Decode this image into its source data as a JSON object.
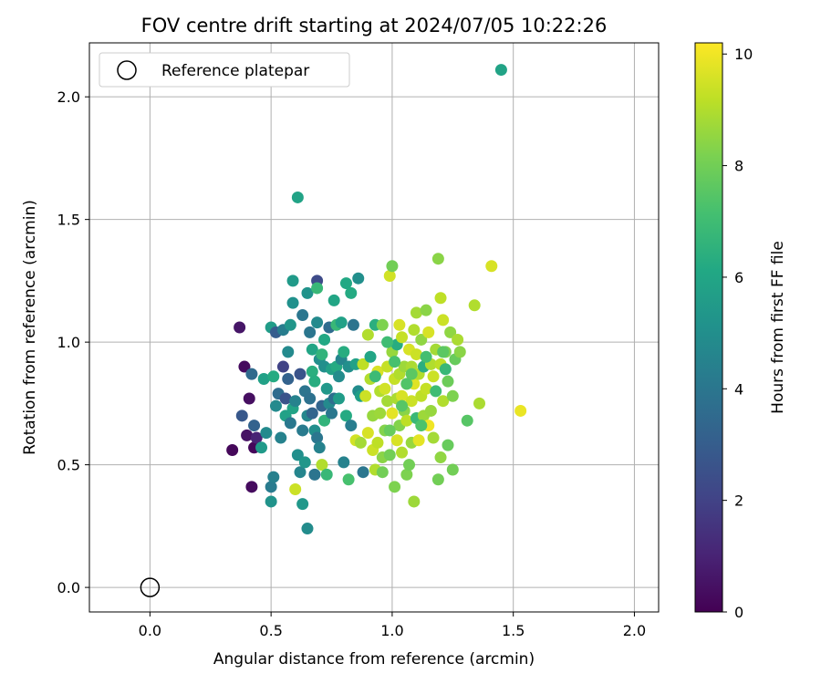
{
  "chart_data": {
    "type": "scatter",
    "title": "FOV centre drift starting at 2024/07/05 10:22:26",
    "xlabel": "Angular distance from reference (arcmin)",
    "ylabel": "Rotation from reference (arcmin)",
    "xlim": [
      -0.25,
      2.1
    ],
    "ylim": [
      -0.1,
      2.22
    ],
    "xticks": [
      "0.0",
      "0.5",
      "1.0",
      "1.5",
      "2.0"
    ],
    "xtick_values": [
      0.0,
      0.5,
      1.0,
      1.5,
      2.0
    ],
    "yticks": [
      "0.0",
      "0.5",
      "1.0",
      "1.5",
      "2.0"
    ],
    "ytick_values": [
      0.0,
      0.5,
      1.0,
      1.5,
      2.0
    ],
    "grid": true,
    "colorbar": {
      "label": "Hours from first FF file",
      "range": [
        0,
        10.2
      ],
      "ticks": [
        "0",
        "2",
        "4",
        "6",
        "8",
        "10"
      ],
      "tick_values": [
        0,
        2,
        4,
        6,
        8,
        10
      ],
      "colormap": "viridis"
    },
    "legend": {
      "position": "top-left",
      "entries": [
        {
          "label": "Reference platepar",
          "marker": "open-circle",
          "color": "#000000"
        }
      ]
    },
    "reference_point": {
      "x": 0.0,
      "y": 0.0
    },
    "points": [
      [
        0.34,
        0.56,
        0.2
      ],
      [
        0.37,
        1.06,
        0.6
      ],
      [
        0.39,
        0.9,
        0.3
      ],
      [
        0.4,
        0.62,
        0.5
      ],
      [
        0.41,
        0.77,
        0.4
      ],
      [
        0.42,
        0.41,
        0.3
      ],
      [
        0.43,
        0.57,
        0.2
      ],
      [
        0.38,
        0.7,
        2.8
      ],
      [
        0.42,
        0.87,
        3.5
      ],
      [
        0.43,
        0.66,
        3.2
      ],
      [
        0.44,
        0.61,
        1.0
      ],
      [
        0.46,
        0.57,
        5.5
      ],
      [
        0.47,
        0.85,
        5.8
      ],
      [
        0.48,
        0.63,
        4.8
      ],
      [
        0.5,
        1.06,
        5.6
      ],
      [
        0.5,
        0.41,
        4.2
      ],
      [
        0.51,
        0.45,
        4.4
      ],
      [
        0.5,
        0.35,
        5.2
      ],
      [
        0.51,
        0.86,
        6.2
      ],
      [
        0.52,
        1.04,
        3.0
      ],
      [
        0.52,
        0.74,
        4.8
      ],
      [
        0.53,
        0.79,
        3.6
      ],
      [
        0.54,
        0.61,
        4.5
      ],
      [
        0.55,
        1.05,
        4.3
      ],
      [
        0.55,
        0.9,
        2.0
      ],
      [
        0.56,
        0.77,
        2.6
      ],
      [
        0.56,
        0.7,
        5.8
      ],
      [
        0.57,
        0.85,
        3.2
      ],
      [
        0.57,
        0.96,
        4.8
      ],
      [
        0.58,
        1.07,
        5.3
      ],
      [
        0.58,
        0.67,
        4.1
      ],
      [
        0.59,
        0.73,
        5.9
      ],
      [
        0.59,
        1.25,
        5.5
      ],
      [
        0.59,
        1.16,
        5.1
      ],
      [
        0.6,
        0.76,
        4.5
      ],
      [
        0.6,
        0.4,
        9.4
      ],
      [
        0.61,
        1.59,
        5.9
      ],
      [
        0.61,
        0.54,
        5.0
      ],
      [
        0.62,
        0.87,
        2.6
      ],
      [
        0.62,
        0.47,
        4.6
      ],
      [
        0.63,
        1.11,
        4.0
      ],
      [
        0.63,
        0.64,
        4.2
      ],
      [
        0.63,
        0.34,
        5.4
      ],
      [
        0.64,
        0.8,
        3.9
      ],
      [
        0.64,
        0.51,
        5.3
      ],
      [
        0.65,
        1.2,
        5.2
      ],
      [
        0.65,
        0.7,
        4.7
      ],
      [
        0.65,
        0.24,
        4.9
      ],
      [
        0.66,
        1.04,
        4.0
      ],
      [
        0.66,
        0.77,
        3.8
      ],
      [
        0.67,
        0.97,
        6.0
      ],
      [
        0.67,
        0.71,
        3.3
      ],
      [
        0.67,
        0.88,
        6.4
      ],
      [
        0.68,
        0.84,
        6.3
      ],
      [
        0.68,
        0.46,
        3.9
      ],
      [
        0.68,
        0.64,
        5.0
      ],
      [
        0.69,
        1.25,
        2.3
      ],
      [
        0.69,
        1.08,
        4.8
      ],
      [
        0.69,
        0.61,
        4.0
      ],
      [
        0.69,
        1.22,
        6.8
      ],
      [
        0.7,
        0.57,
        4.5
      ],
      [
        0.7,
        0.93,
        5.0
      ],
      [
        0.71,
        0.74,
        3.3
      ],
      [
        0.71,
        0.95,
        6.6
      ],
      [
        0.71,
        0.5,
        9.0
      ],
      [
        0.72,
        1.01,
        6.1
      ],
      [
        0.72,
        0.68,
        6.6
      ],
      [
        0.72,
        0.9,
        5.0
      ],
      [
        0.73,
        0.81,
        5.4
      ],
      [
        0.73,
        0.46,
        6.8
      ],
      [
        0.74,
        1.06,
        3.6
      ],
      [
        0.74,
        0.75,
        4.8
      ],
      [
        0.75,
        0.89,
        5.8
      ],
      [
        0.75,
        0.71,
        4.1
      ],
      [
        0.76,
        1.17,
        6.0
      ],
      [
        0.76,
        0.77,
        3.7
      ],
      [
        0.77,
        0.9,
        6.2
      ],
      [
        0.77,
        1.07,
        6.8
      ],
      [
        0.78,
        0.86,
        4.9
      ],
      [
        0.78,
        0.77,
        5.6
      ],
      [
        0.79,
        1.08,
        5.8
      ],
      [
        0.79,
        0.93,
        4.6
      ],
      [
        0.8,
        0.96,
        6.3
      ],
      [
        0.8,
        0.51,
        4.5
      ],
      [
        0.81,
        1.24,
        6.1
      ],
      [
        0.81,
        0.7,
        6.2
      ],
      [
        0.82,
        0.9,
        5.0
      ],
      [
        0.82,
        0.44,
        7.2
      ],
      [
        0.83,
        1.2,
        6.2
      ],
      [
        0.83,
        0.66,
        4.3
      ],
      [
        0.84,
        1.07,
        3.9
      ],
      [
        0.85,
        0.6,
        9.5
      ],
      [
        0.85,
        0.91,
        5.8
      ],
      [
        0.86,
        1.26,
        5.0
      ],
      [
        0.86,
        0.8,
        4.9
      ],
      [
        0.87,
        0.59,
        8.8
      ],
      [
        0.87,
        0.78,
        5.7
      ],
      [
        0.88,
        0.47,
        4.0
      ],
      [
        0.88,
        0.91,
        9.2
      ],
      [
        0.89,
        0.78,
        9.4
      ],
      [
        0.9,
        0.63,
        9.6
      ],
      [
        0.9,
        1.03,
        9.0
      ],
      [
        0.91,
        0.85,
        9.0
      ],
      [
        0.91,
        0.94,
        6.0
      ],
      [
        0.92,
        0.56,
        9.4
      ],
      [
        0.92,
        0.7,
        8.6
      ],
      [
        0.93,
        0.48,
        9.0
      ],
      [
        0.93,
        1.07,
        6.4
      ],
      [
        0.94,
        0.88,
        9.6
      ],
      [
        0.94,
        0.59,
        9.2
      ],
      [
        0.95,
        0.8,
        9.0
      ],
      [
        0.95,
        0.71,
        8.7
      ],
      [
        0.96,
        1.07,
        8.2
      ],
      [
        0.96,
        0.53,
        8.4
      ],
      [
        0.96,
        0.47,
        8.0
      ],
      [
        0.97,
        0.81,
        9.5
      ],
      [
        0.97,
        0.64,
        8.3
      ],
      [
        0.98,
        0.9,
        9.3
      ],
      [
        0.98,
        0.76,
        8.8
      ],
      [
        0.99,
        0.54,
        8.0
      ],
      [
        0.99,
        1.27,
        9.5
      ],
      [
        1.0,
        0.96,
        8.6
      ],
      [
        1.0,
        0.71,
        9.8
      ],
      [
        1.0,
        1.31,
        8.0
      ],
      [
        1.01,
        0.85,
        9.3
      ],
      [
        1.01,
        0.41,
        8.2
      ],
      [
        1.02,
        0.6,
        9.6
      ],
      [
        1.02,
        0.99,
        6.3
      ],
      [
        1.02,
        0.77,
        8.9
      ],
      [
        1.03,
        1.07,
        9.6
      ],
      [
        1.03,
        0.87,
        9.0
      ],
      [
        1.03,
        0.66,
        8.3
      ],
      [
        1.04,
        1.02,
        9.3
      ],
      [
        1.04,
        0.78,
        9.6
      ],
      [
        1.04,
        0.55,
        9.0
      ],
      [
        1.05,
        0.9,
        8.7
      ],
      [
        1.05,
        0.72,
        8.4
      ],
      [
        1.06,
        0.46,
        8.2
      ],
      [
        1.06,
        0.83,
        9.8
      ],
      [
        1.06,
        0.68,
        9.2
      ],
      [
        1.07,
        0.97,
        9.6
      ],
      [
        1.07,
        0.5,
        8.0
      ],
      [
        1.08,
        0.9,
        8.9
      ],
      [
        1.08,
        0.76,
        9.4
      ],
      [
        1.08,
        0.59,
        8.6
      ],
      [
        1.09,
        1.05,
        9.0
      ],
      [
        1.09,
        0.83,
        9.7
      ],
      [
        1.09,
        0.35,
        8.7
      ],
      [
        1.1,
        0.95,
        9.4
      ],
      [
        1.1,
        0.69,
        6.8
      ],
      [
        1.1,
        1.12,
        8.8
      ],
      [
        1.11,
        0.87,
        9.0
      ],
      [
        1.11,
        0.6,
        9.8
      ],
      [
        1.12,
        0.78,
        9.2
      ],
      [
        1.12,
        1.01,
        8.5
      ],
      [
        1.13,
        0.9,
        6.4
      ],
      [
        1.13,
        0.7,
        8.7
      ],
      [
        1.14,
        1.13,
        8.4
      ],
      [
        1.14,
        0.81,
        9.3
      ],
      [
        1.15,
        1.04,
        9.6
      ],
      [
        1.15,
        0.66,
        10.0
      ],
      [
        1.16,
        0.91,
        9.0
      ],
      [
        1.16,
        0.72,
        8.6
      ],
      [
        1.17,
        0.86,
        9.4
      ],
      [
        1.17,
        0.61,
        8.8
      ],
      [
        1.18,
        0.97,
        8.8
      ],
      [
        1.19,
        1.34,
        8.4
      ],
      [
        1.19,
        0.44,
        8.0
      ],
      [
        1.2,
        0.91,
        9.2
      ],
      [
        1.2,
        1.18,
        9.2
      ],
      [
        1.2,
        0.53,
        8.5
      ],
      [
        1.21,
        0.76,
        9.0
      ],
      [
        1.21,
        1.09,
        9.4
      ],
      [
        1.22,
        0.96,
        8.2
      ],
      [
        1.22,
        0.89,
        6.8
      ],
      [
        1.23,
        0.58,
        7.8
      ],
      [
        1.23,
        0.84,
        7.9
      ],
      [
        1.24,
        1.04,
        8.5
      ],
      [
        1.25,
        0.78,
        8.2
      ],
      [
        1.25,
        0.48,
        8.0
      ],
      [
        1.26,
        0.93,
        7.8
      ],
      [
        1.27,
        1.01,
        8.9
      ],
      [
        1.28,
        0.96,
        8.4
      ],
      [
        1.31,
        0.68,
        7.5
      ],
      [
        1.34,
        1.15,
        9.0
      ],
      [
        1.36,
        0.75,
        8.9
      ],
      [
        1.41,
        1.31,
        9.6
      ],
      [
        1.45,
        2.11,
        5.9
      ],
      [
        1.53,
        0.72,
        9.9
      ],
      [
        0.99,
        0.64,
        7.8
      ],
      [
        1.04,
        0.74,
        7.5
      ],
      [
        1.08,
        0.87,
        7.6
      ],
      [
        1.12,
        0.66,
        7.3
      ],
      [
        0.98,
        1.0,
        7.0
      ],
      [
        1.14,
        0.94,
        7.1
      ],
      [
        1.01,
        0.92,
        7.2
      ],
      [
        0.93,
        0.86,
        6.9
      ],
      [
        1.06,
        0.83,
        7.4
      ],
      [
        1.18,
        0.8,
        7.0
      ],
      [
        1.21,
        0.96,
        7.6
      ]
    ]
  }
}
